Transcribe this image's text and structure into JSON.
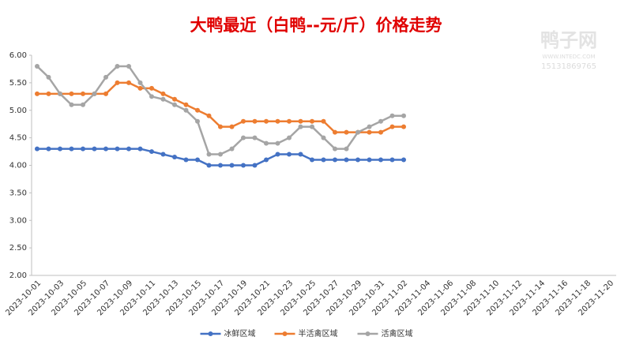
{
  "chart_data": {
    "type": "line",
    "title": "大鸭最近（白鸭--元/斤）价格走势",
    "categories": [
      "2023-10-01",
      null,
      "2023-10-03",
      null,
      "2023-10-05",
      null,
      "2023-10-07",
      null,
      "2023-10-09",
      null,
      "2023-10-11",
      null,
      "2023-10-13",
      null,
      "2023-10-15",
      null,
      "2023-10-17",
      null,
      "2023-10-19",
      null,
      "2023-10-21",
      null,
      "2023-10-23",
      null,
      "2023-10-25",
      null,
      "2023-10-27",
      null,
      "2023-10-29",
      null,
      "2023-10-31",
      null,
      "2023-11-02",
      null,
      "2023-11-04",
      null,
      "2023-11-06",
      null,
      "2023-11-08",
      null,
      "2023-11-10",
      null,
      "2023-11-12",
      null,
      "2023-11-14",
      null,
      "2023-11-16",
      null,
      "2023-11-18",
      null,
      "2023-11-20"
    ],
    "series": [
      {
        "name": "冰鲜区域",
        "color": "#4472c4",
        "values": [
          4.3,
          4.3,
          4.3,
          4.3,
          4.3,
          4.3,
          4.3,
          4.3,
          4.3,
          4.3,
          4.25,
          4.2,
          4.15,
          4.1,
          4.1,
          4.0,
          4.0,
          4.0,
          4.0,
          4.0,
          4.1,
          4.2,
          4.2,
          4.2,
          4.1,
          4.1,
          4.1,
          4.1,
          4.1,
          4.1,
          4.1,
          4.1,
          4.1,
          null,
          null,
          null,
          null,
          null,
          null,
          null,
          null,
          null,
          null,
          null,
          null,
          null,
          null,
          null,
          null,
          null,
          null
        ]
      },
      {
        "name": "半活禽区域",
        "color": "#ed7d31",
        "values": [
          5.3,
          5.3,
          5.3,
          5.3,
          5.3,
          5.3,
          5.3,
          5.5,
          5.5,
          5.4,
          5.4,
          5.3,
          5.2,
          5.1,
          5.0,
          4.9,
          4.7,
          4.7,
          4.8,
          4.8,
          4.8,
          4.8,
          4.8,
          4.8,
          4.8,
          4.8,
          4.6,
          4.6,
          4.6,
          4.6,
          4.6,
          4.7,
          4.7,
          null,
          null,
          null,
          null,
          null,
          null,
          null,
          null,
          null,
          null,
          null,
          null,
          null,
          null,
          null,
          null,
          null,
          null
        ]
      },
      {
        "name": "活禽区域",
        "color": "#a5a5a5",
        "values": [
          5.8,
          5.6,
          5.3,
          5.1,
          5.1,
          5.3,
          5.6,
          5.8,
          5.8,
          5.5,
          5.25,
          5.2,
          5.1,
          5.0,
          4.8,
          4.2,
          4.2,
          4.3,
          4.5,
          4.5,
          4.4,
          4.4,
          4.5,
          4.7,
          4.7,
          4.5,
          4.3,
          4.3,
          4.6,
          4.7,
          4.8,
          4.9,
          4.9,
          null,
          null,
          null,
          null,
          null,
          null,
          null,
          null,
          null,
          null,
          null,
          null,
          null,
          null,
          null,
          null,
          null,
          null
        ]
      }
    ],
    "ylim": [
      2,
      6
    ],
    "yticks": [
      {
        "value": 2,
        "label": "2.00"
      },
      {
        "value": 2.5,
        "label": "2.50"
      },
      {
        "value": 3,
        "label": "3.00"
      },
      {
        "value": 3.5,
        "label": "3.50"
      },
      {
        "value": 4,
        "label": "4.00"
      },
      {
        "value": 4.5,
        "label": "4.50"
      },
      {
        "value": 5,
        "label": "5.00"
      },
      {
        "value": 5.5,
        "label": "5.50"
      },
      {
        "value": 6,
        "label": "6.00"
      }
    ],
    "grid": false,
    "legend": "bottom"
  },
  "watermark": {
    "name": "鸭子网",
    "url": "WWW.INTEDC.COM",
    "phone": "15131869765"
  }
}
